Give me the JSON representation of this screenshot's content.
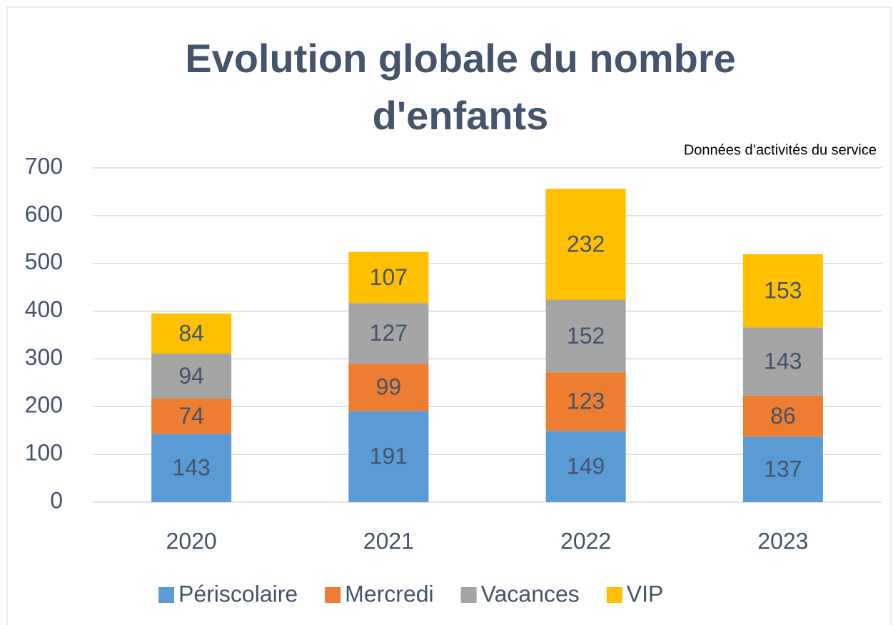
{
  "chart_data": {
    "type": "stacked_bar",
    "title": "Evolution globale du nombre d'enfants",
    "annotation": "Données d’activités du service",
    "categories": [
      "2020",
      "2021",
      "2022",
      "2023"
    ],
    "series": [
      {
        "name": "Périscolaire",
        "color": "#5b9bd5",
        "values": [
          143,
          191,
          149,
          137
        ]
      },
      {
        "name": "Mercredi",
        "color": "#ed7d31",
        "values": [
          74,
          99,
          123,
          86
        ]
      },
      {
        "name": "Vacances",
        "color": "#a5a5a5",
        "values": [
          94,
          127,
          152,
          143
        ]
      },
      {
        "name": "VIP",
        "color": "#ffc000",
        "values": [
          84,
          107,
          232,
          153
        ]
      }
    ],
    "ylim": [
      0,
      700
    ],
    "yticks": [
      0,
      100,
      200,
      300,
      400,
      500,
      600,
      700
    ],
    "grid": true,
    "legend": "bottom"
  }
}
